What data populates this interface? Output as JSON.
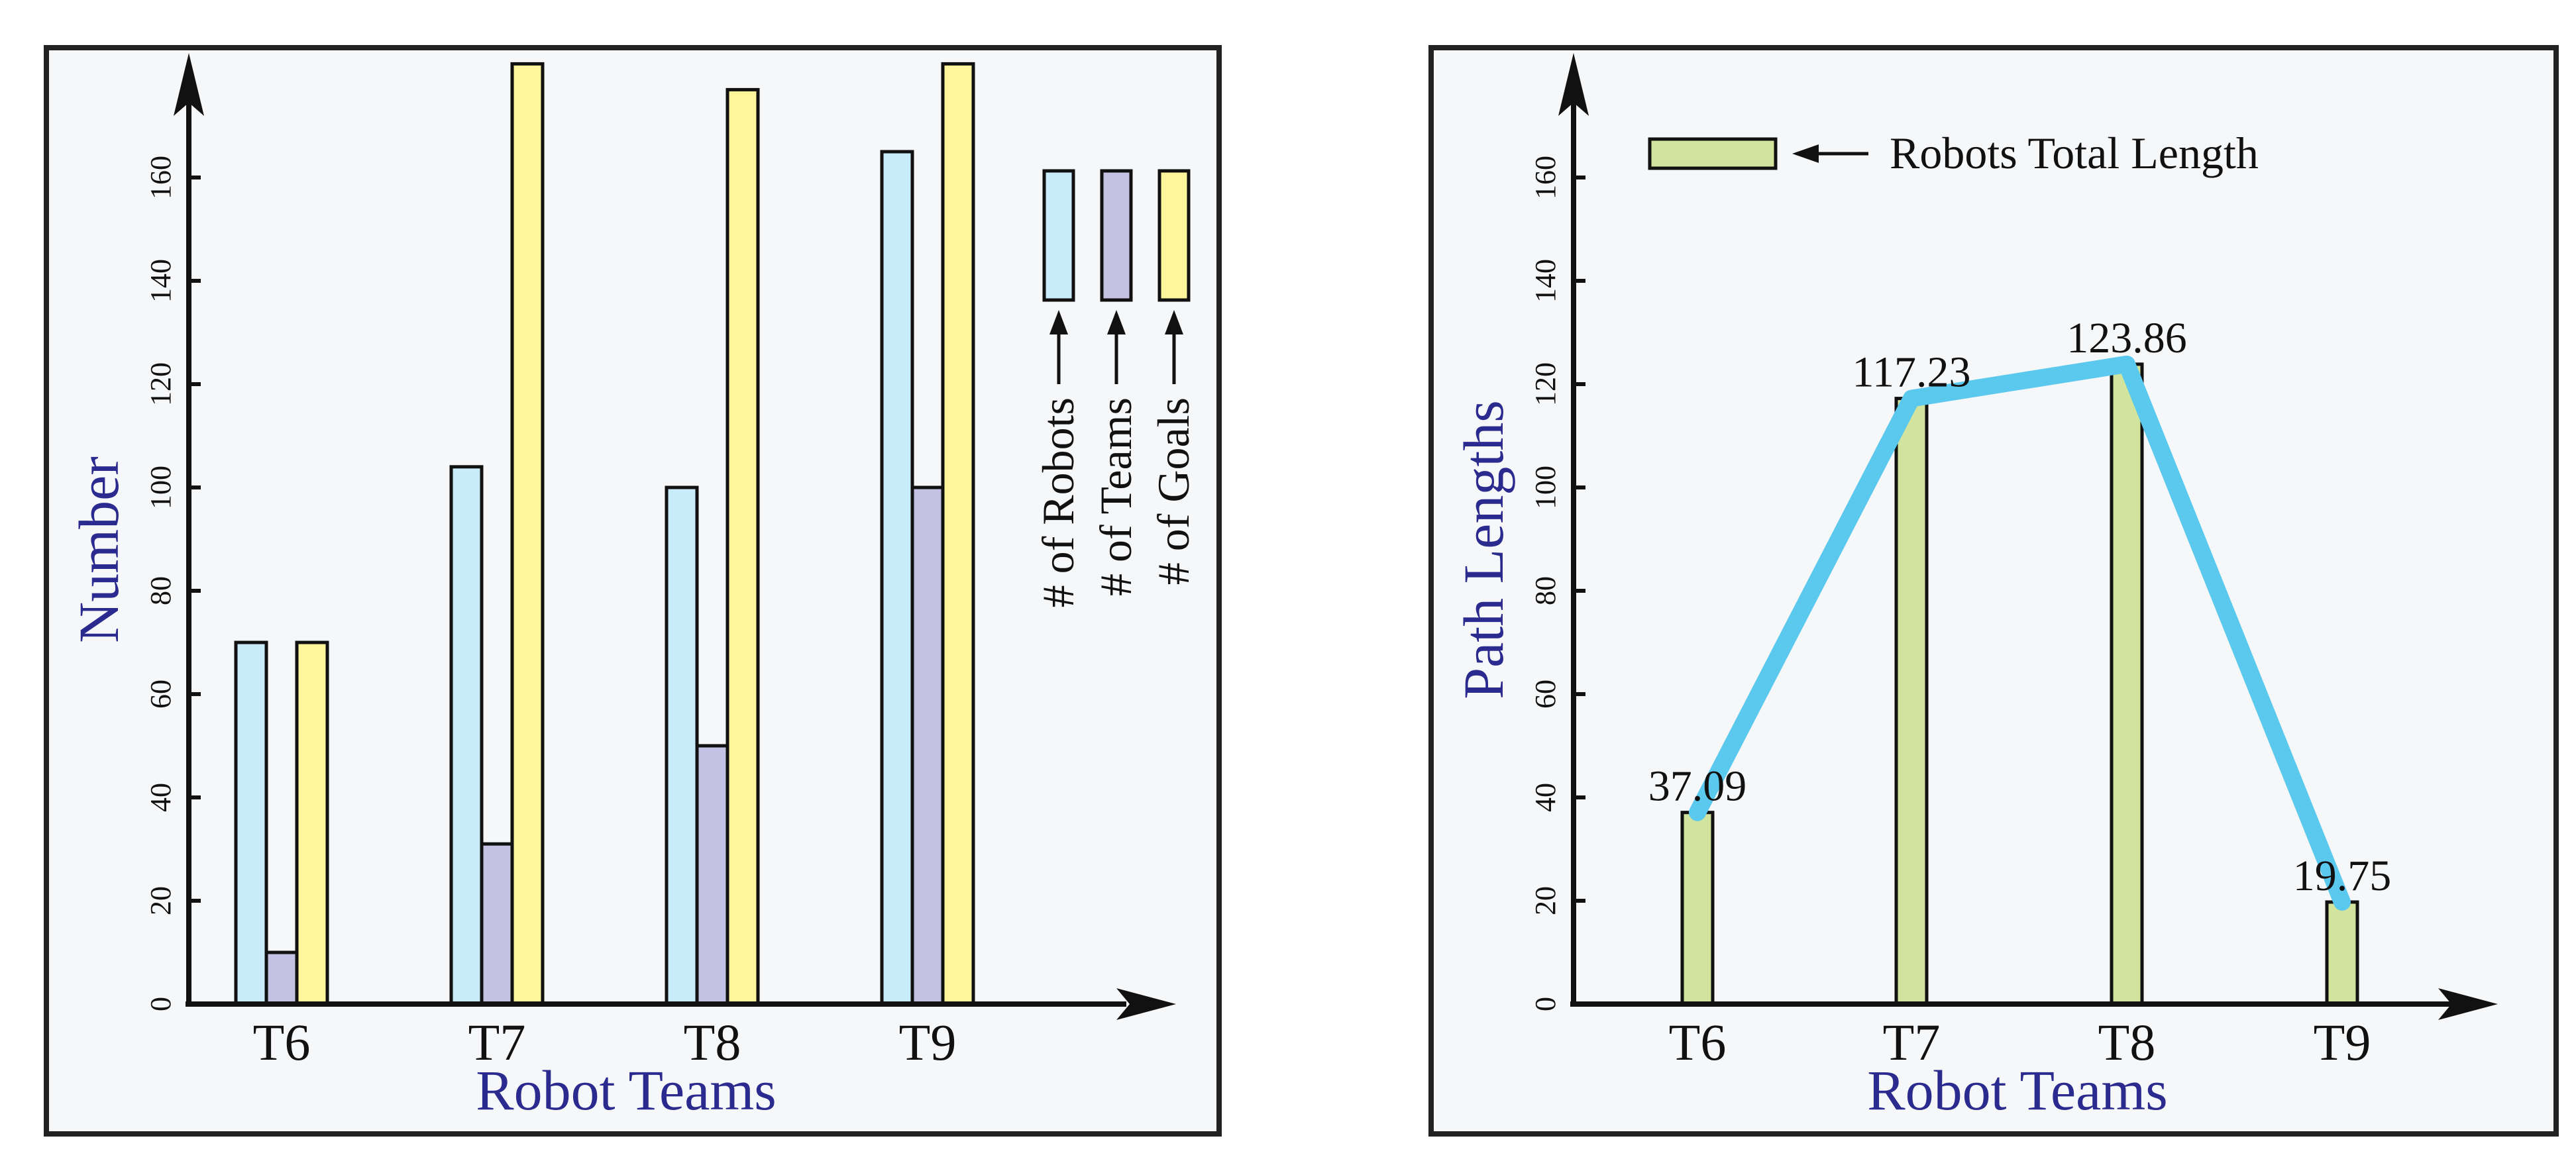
{
  "colors": {
    "panel_bg": "#f6f7f9",
    "frame": "#222222",
    "axis_title": "#2b2b8f",
    "robots": "#c9ecfa",
    "teams": "#c4c2e2",
    "goals": "#fff59a",
    "path_bar": "#d2e39d",
    "trend_line": "#5bc8ee",
    "bar_stroke": "#111111"
  },
  "chart_data": [
    {
      "type": "bar",
      "xlabel": "Robot Teams",
      "ylabel": "Number",
      "categories": [
        "T6",
        "T7",
        "T8",
        "T9"
      ],
      "yticks": [
        "0",
        "20",
        "40",
        "60",
        "80",
        "100",
        "120",
        "140",
        "160"
      ],
      "ylim": [
        0,
        180
      ],
      "grid": false,
      "legend_position": "top-right, rotated vertical",
      "series": [
        {
          "name": "# of Robots",
          "color": "#c9ecfa",
          "values": [
            70,
            104,
            100,
            165
          ]
        },
        {
          "name": "# of Teams",
          "color": "#c4c2e2",
          "values": [
            10,
            31,
            50,
            100
          ]
        },
        {
          "name": "# of Goals",
          "color": "#fff59a",
          "values": [
            70,
            182,
            177,
            182
          ]
        }
      ]
    },
    {
      "type": "bar",
      "xlabel": "Robot Teams",
      "ylabel": "Path Lengths",
      "categories": [
        "T6",
        "T7",
        "T8",
        "T9"
      ],
      "yticks": [
        "0",
        "20",
        "40",
        "60",
        "80",
        "100",
        "120",
        "140",
        "160"
      ],
      "ylim": [
        0,
        180
      ],
      "grid": false,
      "legend_position": "top-left",
      "series": [
        {
          "name": "Robots Total Length",
          "color": "#d2e39d",
          "values": [
            37.09,
            117.23,
            123.86,
            19.75
          ],
          "data_labels": [
            "37.09",
            "117.23",
            "123.86",
            "19.75"
          ]
        }
      ],
      "trend_line": {
        "color": "#5bc8ee",
        "values": [
          37.09,
          117.23,
          123.86,
          19.75
        ]
      }
    }
  ]
}
